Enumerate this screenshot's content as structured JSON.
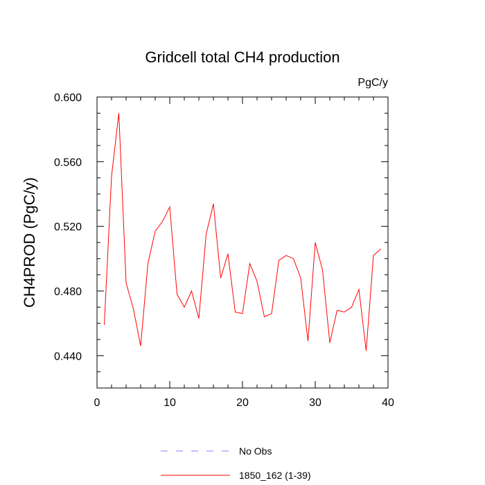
{
  "chart_data": {
    "type": "line",
    "title": "Gridcell total CH4 production",
    "units": "PgC/y",
    "xlabel": "",
    "ylabel": "CH4PROD  (PgC/y)",
    "xlim": [
      0,
      40
    ],
    "ylim": [
      0.42,
      0.6
    ],
    "xticks": [
      0,
      10,
      20,
      30,
      40
    ],
    "xtick_labels": [
      "0",
      "10",
      "20",
      "30",
      "40"
    ],
    "yticks": [
      0.44,
      0.48,
      0.52,
      0.56,
      0.6
    ],
    "ytick_labels": [
      "0.440",
      "0.480",
      "0.520",
      "0.560",
      "0.600"
    ],
    "grid": false,
    "legend_position": "bottom",
    "series": [
      {
        "name": "No Obs",
        "color": "#8080ff",
        "dash": "dashed",
        "x": [],
        "values": []
      },
      {
        "name": "1850_162 (1-39)",
        "color": "#ff0000",
        "dash": "solid",
        "x": [
          1,
          2,
          3,
          4,
          5,
          6,
          7,
          8,
          9,
          10,
          11,
          12,
          13,
          14,
          15,
          16,
          17,
          18,
          19,
          20,
          21,
          22,
          23,
          24,
          25,
          26,
          27,
          28,
          29,
          30,
          31,
          32,
          33,
          34,
          35,
          36,
          37,
          38,
          39
        ],
        "values": [
          0.459,
          0.551,
          0.59,
          0.485,
          0.469,
          0.446,
          0.497,
          0.517,
          0.523,
          0.532,
          0.478,
          0.47,
          0.48,
          0.463,
          0.515,
          0.534,
          0.488,
          0.503,
          0.467,
          0.466,
          0.497,
          0.486,
          0.464,
          0.466,
          0.499,
          0.502,
          0.5,
          0.488,
          0.449,
          0.51,
          0.493,
          0.448,
          0.468,
          0.467,
          0.47,
          0.481,
          0.443,
          0.502,
          0.506
        ]
      }
    ]
  }
}
